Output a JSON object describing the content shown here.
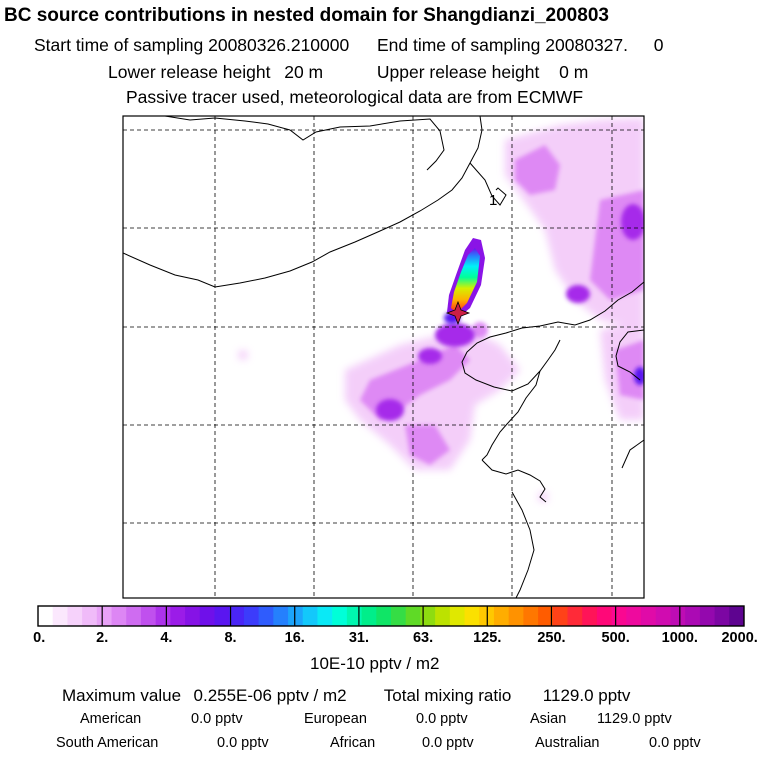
{
  "title": "BC  source contributions in nested domain for Shangdianzi_200803",
  "header": {
    "start_label": "Start time of sampling",
    "start_value": "20080326.210000",
    "end_label": "End time of sampling",
    "end_value": "20080327.",
    "end_suffix": "0",
    "lower_label": "Lower release height",
    "lower_value": "20 m",
    "upper_label": "Upper release height",
    "upper_value": "0 m",
    "note": "Passive tracer used, meteorological data are from ECMWF"
  },
  "map": {
    "contour_label": "1",
    "station_marker": "star"
  },
  "colorbar": {
    "labels": [
      "0.",
      "2.",
      "4.",
      "8.",
      "16.",
      "31.",
      "63.",
      "125.",
      "250.",
      "500.",
      "1000.",
      "2000."
    ],
    "colors": [
      "#ffffff",
      "#fbe8fd",
      "#f6d2fb",
      "#f0bbf9",
      "#e8a2f7",
      "#dd86f4",
      "#cf6cf1",
      "#c050ee",
      "#ad33eb",
      "#9b1ce8",
      "#8613e6",
      "#6f10ea",
      "#5a16f0",
      "#4a25f6",
      "#3c3cfb",
      "#2f5cfd",
      "#2580fd",
      "#1ca4fc",
      "#13c8fb",
      "#0ae9f6",
      "#00ffd8",
      "#00f7b0",
      "#00ee8a",
      "#10e566",
      "#35dd45",
      "#5fda26",
      "#8edc10",
      "#bce200",
      "#e0e800",
      "#fbe000",
      "#ffc800",
      "#ffad00",
      "#ff9200",
      "#ff7700",
      "#ff5c00",
      "#ff4218",
      "#ff2a38",
      "#ff1458",
      "#ff0878",
      "#fa0891",
      "#ee0a9e",
      "#e00ba8",
      "#d00cb0",
      "#be0cb4",
      "#ab0ab4",
      "#9408ae",
      "#7c06a3",
      "#5e0490"
    ],
    "unit": "10E-10 pptv / m2"
  },
  "summary": {
    "max_label": "Maximum value",
    "max_value": "0.255E-06 pptv / m2",
    "total_label": "Total mixing ratio",
    "total_value": "1129.0 pptv",
    "regions": [
      {
        "name": "American",
        "value": "0.0 pptv"
      },
      {
        "name": "European",
        "value": "0.0 pptv"
      },
      {
        "name": "Asian",
        "value": "1129.0 pptv"
      },
      {
        "name": "South American",
        "value": "0.0 pptv"
      },
      {
        "name": "African",
        "value": "0.0 pptv"
      },
      {
        "name": "Australian",
        "value": "0.0 pptv"
      }
    ]
  }
}
